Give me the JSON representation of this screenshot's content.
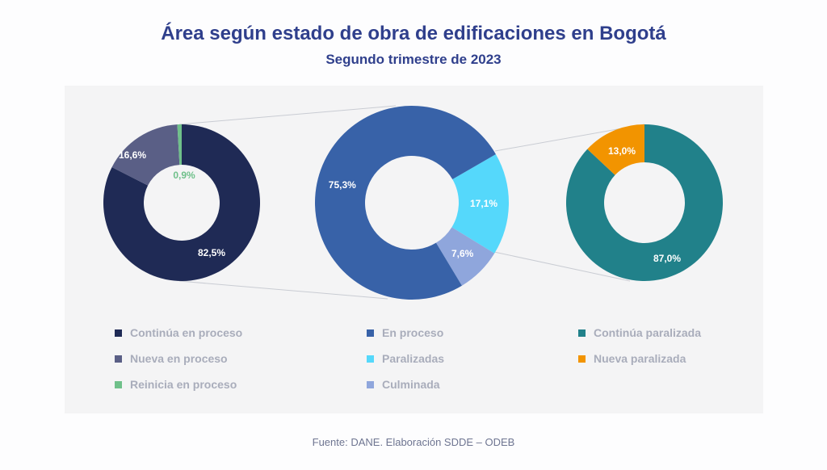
{
  "chart_data": {
    "type": "pie",
    "title": "Área según estado de obra de edificaciones en Bogotá",
    "subtitle": "Segundo trimestre de 2023",
    "source": "Fuente: DANE. Elaboración SDDE – ODEB",
    "charts": [
      {
        "name": "En proceso detalle",
        "slices": [
          {
            "label": "Continúa en proceso",
            "value": 82.5,
            "text": "82,5%",
            "color": "#1f2a55"
          },
          {
            "label": "Nueva en proceso",
            "value": 16.6,
            "text": "16,6%",
            "color": "#5a5f86"
          },
          {
            "label": "Reinicia en proceso",
            "value": 0.9,
            "text": "0,9%",
            "color": "#6fc08a"
          }
        ]
      },
      {
        "name": "Total",
        "slices": [
          {
            "label": "Paralizadas",
            "value": 17.1,
            "text": "17,1%",
            "color": "#55d8fb"
          },
          {
            "label": "Culminada",
            "value": 7.6,
            "text": "7,6%",
            "color": "#8fa6dc"
          },
          {
            "label": "En proceso",
            "value": 75.3,
            "text": "75,3%",
            "color": "#3862a8"
          }
        ]
      },
      {
        "name": "Paralizadas detalle",
        "slices": [
          {
            "label": "Continúa paralizada",
            "value": 87.0,
            "text": "87,0%",
            "color": "#21818a"
          },
          {
            "label": "Nueva paralizada",
            "value": 13.0,
            "text": "13,0%",
            "color": "#f29400"
          }
        ]
      }
    ],
    "legend": [
      [
        "Continúa en proceso",
        "Nueva en proceso",
        "Reinicia en proceso"
      ],
      [
        "En proceso",
        "Paralizadas",
        "Culminada"
      ],
      [
        "Continúa paralizada",
        "Nueva paralizada"
      ]
    ],
    "legend_colors": [
      [
        "#1f2a55",
        "#5a5f86",
        "#6fc08a"
      ],
      [
        "#3862a8",
        "#55d8fb",
        "#8fa6dc"
      ],
      [
        "#21818a",
        "#f29400"
      ]
    ]
  }
}
